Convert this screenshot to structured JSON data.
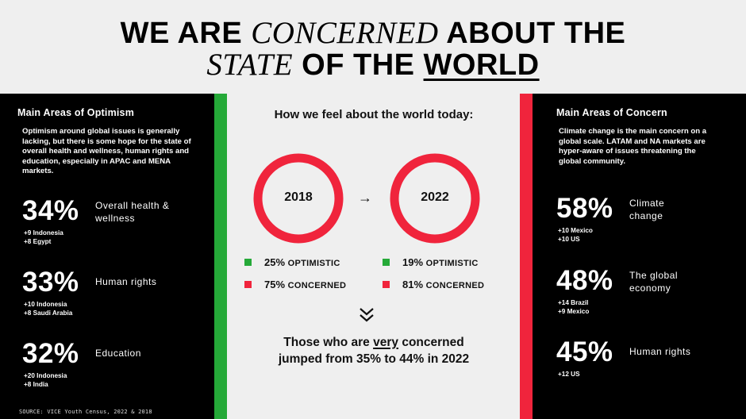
{
  "title": {
    "line1_a": "WE ARE ",
    "line1_b": "CONCERNED",
    "line1_c": " ABOUT THE",
    "line2_a": "STATE",
    "line2_b": " OF THE ",
    "line2_c": "WORLD"
  },
  "colors": {
    "green": "#25a938",
    "red": "#f0243c",
    "panel_bg": "#000000",
    "page_bg": "#efefef"
  },
  "optimism": {
    "heading": "Main Areas of Optimism",
    "description": "Optimism around global issues is generally lacking, but there is some hope for the state of overall health and wellness, human rights and education, especially in APAC and MENA markets.",
    "stats": [
      {
        "pct": "34%",
        "label": "Overall health & wellness",
        "sub1": "+9 Indonesia",
        "sub2": "+8 Egypt"
      },
      {
        "pct": "33%",
        "label": "Human rights",
        "sub1": "+10 Indonesia",
        "sub2": "+8 Saudi Arabia"
      },
      {
        "pct": "32%",
        "label": "Education",
        "sub1": "+20 Indonesia",
        "sub2": "+8 India"
      }
    ],
    "source": "SOURCE: VICE Youth Census, 2022 & 2018"
  },
  "concern": {
    "heading": "Main Areas of Concern",
    "description": "Climate change is the main concern on a global scale. LATAM and NA markets are hyper-aware of issues threatening the global community.",
    "stats": [
      {
        "pct": "58%",
        "label": "Climate change",
        "sub1": "+10 Mexico",
        "sub2": "+10 US"
      },
      {
        "pct": "48%",
        "label": "The global economy",
        "sub1": "+14 Brazil",
        "sub2": "+9 Mexico"
      },
      {
        "pct": "45%",
        "label": "Human rights",
        "sub1": "+12 US",
        "sub2": ""
      }
    ]
  },
  "center": {
    "title": "How we feel about the world today:",
    "arrow_icon": "right-arrow-icon",
    "chevron_icon": "double-chevron-down-icon",
    "years": [
      {
        "year": "2018",
        "optimistic": 25,
        "concerned": 75,
        "opt_pct": "25%",
        "con_pct": "75%"
      },
      {
        "year": "2022",
        "optimistic": 19,
        "concerned": 81,
        "opt_pct": "19%",
        "con_pct": "81%"
      }
    ],
    "optimistic_word": "OPTIMISTIC",
    "concerned_word": "CONCERNED",
    "bottom_line1_a": "Those who are ",
    "bottom_line1_b": "very",
    "bottom_line1_c": " concerned",
    "bottom_line2": "jumped from 35% to 44% in 2022"
  }
}
